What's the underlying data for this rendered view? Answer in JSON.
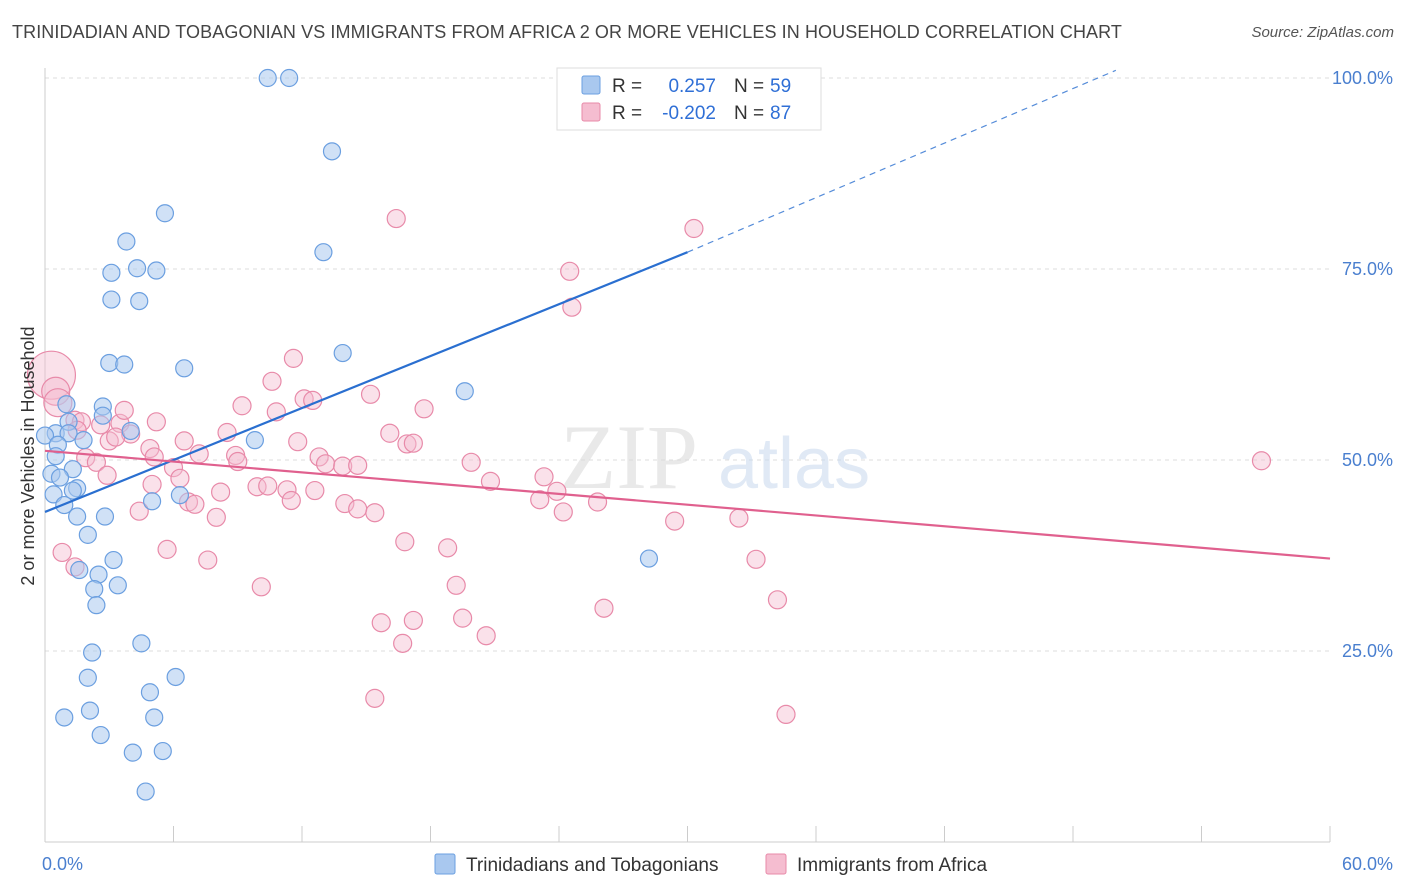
{
  "title": "TRINIDADIAN AND TOBAGONIAN VS IMMIGRANTS FROM AFRICA 2 OR MORE VEHICLES IN HOUSEHOLD CORRELATION CHART",
  "source": "Source: ZipAtlas.com",
  "watermark": {
    "zip": "ZIP",
    "atlas": "atlas"
  },
  "legend_box": {
    "rows": [
      {
        "r_label": "R =",
        "r_value": "0.257",
        "n_label": "N =",
        "n_value": "59"
      },
      {
        "r_label": "R =",
        "r_value": "-0.202",
        "n_label": "N =",
        "n_value": "87"
      }
    ]
  },
  "bottom_legend": [
    "Trinidadians and Tobagonians",
    "Immigrants from Africa"
  ],
  "colors": {
    "blue_fill": "#a9c8ef",
    "blue_stroke": "#6b9fe0",
    "blue_line": "#2a6fd0",
    "pink_fill": "#f5bdd0",
    "pink_stroke": "#e88aa9",
    "pink_line": "#e0608e",
    "grid": "#dddddd",
    "tick_text": "#4a7fcf"
  },
  "chart_data": {
    "type": "scatter",
    "title": "TRINIDADIAN AND TOBAGONIAN VS IMMIGRANTS FROM AFRICA 2 OR MORE VEHICLES IN HOUSEHOLD CORRELATION CHART",
    "xlabel": "",
    "ylabel": "2 or more Vehicles in Household",
    "xlim": [
      0,
      60
    ],
    "ylim": [
      0,
      103
    ],
    "x_tick_labels": [
      "0.0%",
      "60.0%"
    ],
    "y_ticks": [
      25,
      50,
      75,
      100
    ],
    "y_tick_labels": [
      "25.0%",
      "50.0%",
      "75.0%",
      "100.0%"
    ],
    "grid": true,
    "legend_position": "top-center",
    "series": [
      {
        "name": "Trinidadians and Tobagonians",
        "r": 0.257,
        "n": 59,
        "trend": {
          "x": [
            0,
            30
          ],
          "y": [
            43.2,
            77.2
          ],
          "dashed_to": {
            "x": 50,
            "y": 101
          }
        },
        "points": [
          [
            10.4,
            100.0
          ],
          [
            11.4,
            100.0
          ],
          [
            13.4,
            90.4
          ],
          [
            5.6,
            82.3
          ],
          [
            13.0,
            77.2
          ],
          [
            3.8,
            78.6
          ],
          [
            3.1,
            74.5
          ],
          [
            4.3,
            75.1
          ],
          [
            5.2,
            74.8
          ],
          [
            3.1,
            71.0
          ],
          [
            4.4,
            70.8
          ],
          [
            13.9,
            64.0
          ],
          [
            3.0,
            62.7
          ],
          [
            3.7,
            62.5
          ],
          [
            6.5,
            62.0
          ],
          [
            19.6,
            59.0
          ],
          [
            1.0,
            57.3
          ],
          [
            2.7,
            57.0
          ],
          [
            2.7,
            55.8
          ],
          [
            1.1,
            55.0
          ],
          [
            0.5,
            53.5
          ],
          [
            4.0,
            53.8
          ],
          [
            1.1,
            53.5
          ],
          [
            0.0,
            53.2
          ],
          [
            1.8,
            52.6
          ],
          [
            0.6,
            52.0
          ],
          [
            9.8,
            52.6
          ],
          [
            0.5,
            50.5
          ],
          [
            1.3,
            48.8
          ],
          [
            0.3,
            48.2
          ],
          [
            0.7,
            47.7
          ],
          [
            1.5,
            46.3
          ],
          [
            1.3,
            46.0
          ],
          [
            0.4,
            45.5
          ],
          [
            6.3,
            45.4
          ],
          [
            5.0,
            44.6
          ],
          [
            0.9,
            44.1
          ],
          [
            1.5,
            42.6
          ],
          [
            2.8,
            42.6
          ],
          [
            2.0,
            40.2
          ],
          [
            3.2,
            36.9
          ],
          [
            1.6,
            35.6
          ],
          [
            2.5,
            35.0
          ],
          [
            3.4,
            33.6
          ],
          [
            2.3,
            33.1
          ],
          [
            2.4,
            31.0
          ],
          [
            28.2,
            37.1
          ],
          [
            4.5,
            26.0
          ],
          [
            2.2,
            24.8
          ],
          [
            2.0,
            21.5
          ],
          [
            6.1,
            21.6
          ],
          [
            4.9,
            19.6
          ],
          [
            0.9,
            16.3
          ],
          [
            2.1,
            17.2
          ],
          [
            5.1,
            16.3
          ],
          [
            2.6,
            14.0
          ],
          [
            4.1,
            11.7
          ],
          [
            5.5,
            11.9
          ],
          [
            4.7,
            6.6
          ]
        ]
      },
      {
        "name": "Immigrants from Africa",
        "r": -0.202,
        "n": 87,
        "trend": {
          "x": [
            0,
            60
          ],
          "y": [
            51.2,
            37.1
          ]
        },
        "points": [
          [
            0.3,
            61.1
          ],
          [
            0.5,
            59.0
          ],
          [
            0.6,
            57.5
          ],
          [
            1.4,
            55.2
          ],
          [
            2.6,
            54.6
          ],
          [
            3.5,
            54.8
          ],
          [
            16.4,
            81.6
          ],
          [
            30.3,
            80.3
          ],
          [
            24.5,
            74.7
          ],
          [
            24.6,
            70.0
          ],
          [
            11.6,
            63.3
          ],
          [
            10.6,
            60.3
          ],
          [
            12.1,
            58.0
          ],
          [
            12.5,
            57.8
          ],
          [
            15.2,
            58.6
          ],
          [
            9.2,
            57.1
          ],
          [
            3.7,
            56.5
          ],
          [
            10.8,
            56.3
          ],
          [
            17.7,
            56.7
          ],
          [
            5.2,
            55.0
          ],
          [
            1.7,
            55.0
          ],
          [
            1.5,
            53.9
          ],
          [
            4.0,
            53.4
          ],
          [
            6.5,
            52.5
          ],
          [
            8.5,
            53.6
          ],
          [
            11.8,
            52.4
          ],
          [
            16.1,
            53.5
          ],
          [
            16.9,
            52.1
          ],
          [
            17.2,
            52.2
          ],
          [
            3.0,
            52.5
          ],
          [
            4.9,
            51.5
          ],
          [
            5.1,
            50.4
          ],
          [
            7.2,
            50.8
          ],
          [
            8.9,
            50.6
          ],
          [
            9.0,
            49.8
          ],
          [
            12.8,
            50.4
          ],
          [
            13.1,
            49.5
          ],
          [
            13.9,
            49.2
          ],
          [
            14.6,
            49.3
          ],
          [
            1.9,
            50.3
          ],
          [
            2.4,
            49.7
          ],
          [
            6.0,
            49.0
          ],
          [
            19.9,
            49.7
          ],
          [
            23.3,
            47.8
          ],
          [
            20.8,
            47.2
          ],
          [
            56.8,
            49.9
          ],
          [
            6.3,
            47.6
          ],
          [
            5.0,
            46.8
          ],
          [
            9.9,
            46.5
          ],
          [
            10.4,
            46.6
          ],
          [
            11.3,
            46.1
          ],
          [
            12.6,
            46.0
          ],
          [
            8.2,
            45.8
          ],
          [
            6.7,
            44.5
          ],
          [
            7.0,
            44.2
          ],
          [
            11.5,
            44.7
          ],
          [
            14.0,
            44.3
          ],
          [
            14.6,
            43.6
          ],
          [
            15.4,
            43.1
          ],
          [
            23.1,
            44.8
          ],
          [
            23.9,
            45.9
          ],
          [
            25.8,
            44.5
          ],
          [
            4.4,
            43.3
          ],
          [
            8.0,
            42.5
          ],
          [
            24.2,
            43.2
          ],
          [
            29.4,
            42.0
          ],
          [
            32.4,
            42.4
          ],
          [
            5.7,
            38.3
          ],
          [
            7.6,
            36.9
          ],
          [
            16.8,
            39.3
          ],
          [
            18.8,
            38.5
          ],
          [
            33.2,
            37.0
          ],
          [
            0.8,
            37.9
          ],
          [
            10.1,
            33.4
          ],
          [
            19.2,
            33.6
          ],
          [
            26.1,
            30.6
          ],
          [
            34.2,
            31.7
          ],
          [
            19.5,
            29.3
          ],
          [
            15.7,
            28.7
          ],
          [
            17.2,
            29.0
          ],
          [
            20.6,
            27.0
          ],
          [
            16.7,
            26.0
          ],
          [
            15.4,
            18.8
          ],
          [
            34.6,
            16.7
          ],
          [
            1.4,
            36.0
          ],
          [
            2.9,
            48.0
          ],
          [
            3.3,
            53.0
          ]
        ]
      }
    ]
  }
}
